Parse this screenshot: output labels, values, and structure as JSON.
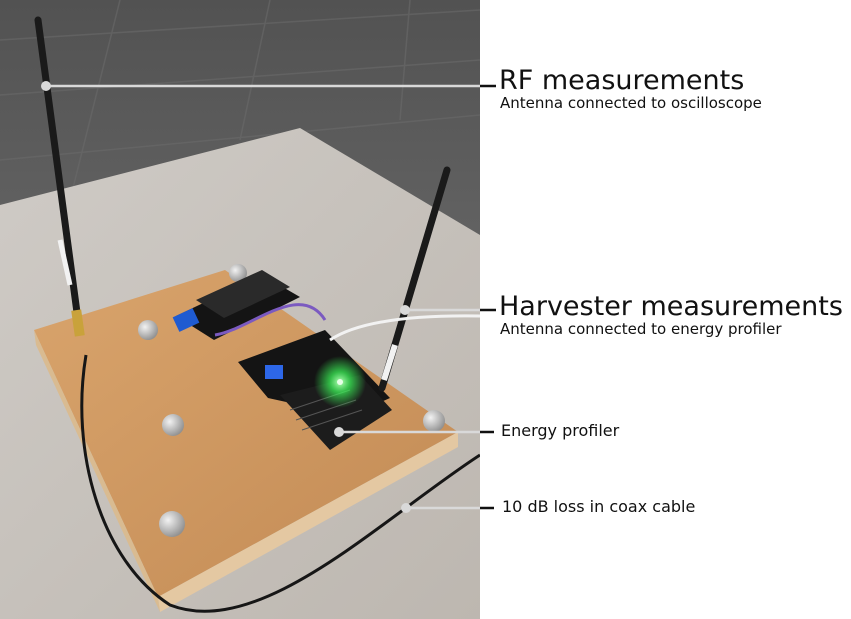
{
  "annotations": {
    "rf": {
      "title": "RF measurements",
      "subtitle": "Antenna connected to oscilloscope"
    },
    "harvester": {
      "title": "Harvester measurements",
      "subtitle": "Antenna connected to energy profiler"
    },
    "profiler": {
      "label": "Energy profiler"
    },
    "cable": {
      "label": "10 dB loss in coax cable"
    }
  },
  "colors": {
    "leader_line": "#d9d9d9",
    "leader_tick": "#111111",
    "text": "#111111",
    "board": "#c9925c",
    "pcb": "#1b1b1b",
    "led": "#3dff5a"
  }
}
